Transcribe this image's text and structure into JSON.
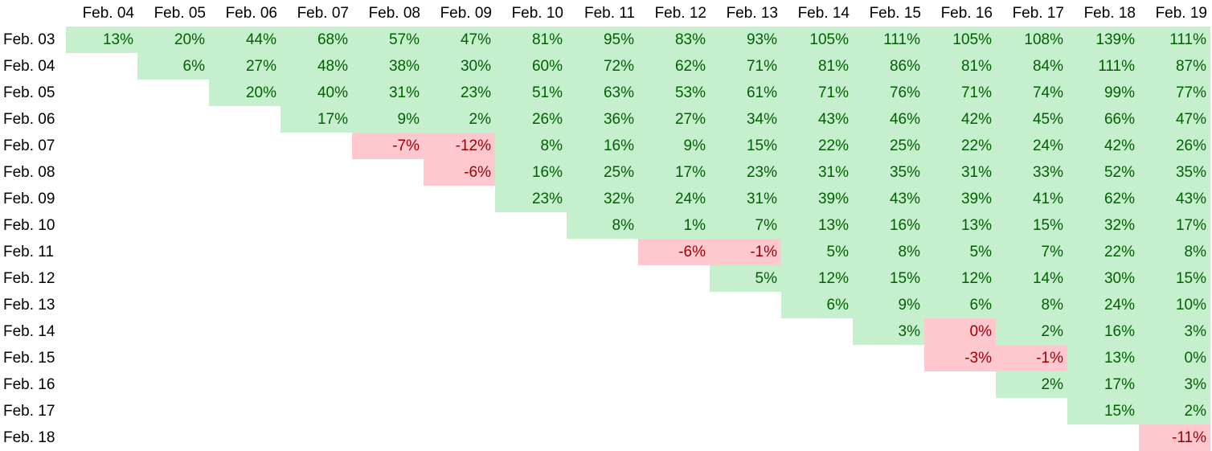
{
  "table": {
    "columns": [
      "Feb. 04",
      "Feb. 05",
      "Feb. 06",
      "Feb. 07",
      "Feb. 08",
      "Feb. 09",
      "Feb. 10",
      "Feb. 11",
      "Feb. 12",
      "Feb. 13",
      "Feb. 14",
      "Feb. 15",
      "Feb. 16",
      "Feb. 17",
      "Feb. 18",
      "Feb. 19"
    ],
    "rows": [
      {
        "label": "Feb. 03",
        "values": [
          "13%",
          "20%",
          "44%",
          "68%",
          "57%",
          "47%",
          "81%",
          "95%",
          "83%",
          "93%",
          "105%",
          "111%",
          "105%",
          "108%",
          "139%",
          "111%"
        ]
      },
      {
        "label": "Feb. 04",
        "values": [
          null,
          "6%",
          "27%",
          "48%",
          "38%",
          "30%",
          "60%",
          "72%",
          "62%",
          "71%",
          "81%",
          "86%",
          "81%",
          "84%",
          "111%",
          "87%"
        ]
      },
      {
        "label": "Feb. 05",
        "values": [
          null,
          null,
          "20%",
          "40%",
          "31%",
          "23%",
          "51%",
          "63%",
          "53%",
          "61%",
          "71%",
          "76%",
          "71%",
          "74%",
          "99%",
          "77%"
        ]
      },
      {
        "label": "Feb. 06",
        "values": [
          null,
          null,
          null,
          "17%",
          "9%",
          "2%",
          "26%",
          "36%",
          "27%",
          "34%",
          "43%",
          "46%",
          "42%",
          "45%",
          "66%",
          "47%"
        ]
      },
      {
        "label": "Feb. 07",
        "values": [
          null,
          null,
          null,
          null,
          "-7%",
          "-12%",
          "8%",
          "16%",
          "9%",
          "15%",
          "22%",
          "25%",
          "22%",
          "24%",
          "42%",
          "26%"
        ]
      },
      {
        "label": "Feb. 08",
        "values": [
          null,
          null,
          null,
          null,
          null,
          "-6%",
          "16%",
          "25%",
          "17%",
          "23%",
          "31%",
          "35%",
          "31%",
          "33%",
          "52%",
          "35%"
        ]
      },
      {
        "label": "Feb. 09",
        "values": [
          null,
          null,
          null,
          null,
          null,
          null,
          "23%",
          "32%",
          "24%",
          "31%",
          "39%",
          "43%",
          "39%",
          "41%",
          "62%",
          "43%"
        ]
      },
      {
        "label": "Feb. 10",
        "values": [
          null,
          null,
          null,
          null,
          null,
          null,
          null,
          "8%",
          "1%",
          "7%",
          "13%",
          "16%",
          "13%",
          "15%",
          "32%",
          "17%"
        ]
      },
      {
        "label": "Feb. 11",
        "values": [
          null,
          null,
          null,
          null,
          null,
          null,
          null,
          null,
          "-6%",
          "-1%",
          "5%",
          "8%",
          "5%",
          "7%",
          "22%",
          "8%"
        ]
      },
      {
        "label": "Feb. 12",
        "values": [
          null,
          null,
          null,
          null,
          null,
          null,
          null,
          null,
          null,
          "5%",
          "12%",
          "15%",
          "12%",
          "14%",
          "30%",
          "15%"
        ]
      },
      {
        "label": "Feb. 13",
        "values": [
          null,
          null,
          null,
          null,
          null,
          null,
          null,
          null,
          null,
          null,
          "6%",
          "9%",
          "6%",
          "8%",
          "24%",
          "10%"
        ]
      },
      {
        "label": "Feb. 14",
        "values": [
          null,
          null,
          null,
          null,
          null,
          null,
          null,
          null,
          null,
          null,
          null,
          "3%",
          "0%",
          "2%",
          "16%",
          "3%"
        ]
      },
      {
        "label": "Feb. 15",
        "values": [
          null,
          null,
          null,
          null,
          null,
          null,
          null,
          null,
          null,
          null,
          null,
          null,
          "-3%",
          "-1%",
          "13%",
          "0%"
        ]
      },
      {
        "label": "Feb. 16",
        "values": [
          null,
          null,
          null,
          null,
          null,
          null,
          null,
          null,
          null,
          null,
          null,
          null,
          null,
          "2%",
          "17%",
          "3%"
        ]
      },
      {
        "label": "Feb. 17",
        "values": [
          null,
          null,
          null,
          null,
          null,
          null,
          null,
          null,
          null,
          null,
          null,
          null,
          null,
          null,
          "15%",
          "2%"
        ]
      },
      {
        "label": "Feb. 18",
        "values": [
          null,
          null,
          null,
          null,
          null,
          null,
          null,
          null,
          null,
          null,
          null,
          null,
          null,
          null,
          null,
          "-11%"
        ]
      }
    ],
    "negative_cells": [
      [
        4,
        4
      ],
      [
        4,
        5
      ],
      [
        5,
        5
      ],
      [
        8,
        8
      ],
      [
        8,
        9
      ],
      [
        11,
        12
      ],
      [
        12,
        12
      ],
      [
        12,
        13
      ],
      [
        15,
        15
      ]
    ]
  },
  "colors": {
    "positive_fill": "#c6efce",
    "positive_text": "#006100",
    "negative_fill": "#ffc7ce",
    "negative_text": "#9c0006"
  }
}
